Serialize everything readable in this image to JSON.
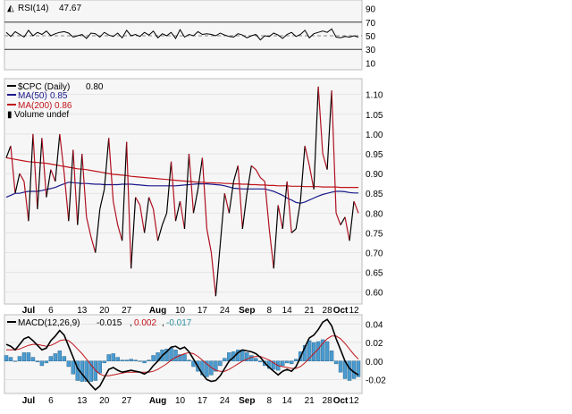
{
  "rsi_panel": {
    "label": "RSI(14)",
    "value": "47.67",
    "levels": [
      90,
      70,
      50,
      30,
      10
    ],
    "ref_lines": [
      70,
      50,
      30
    ],
    "ylim": [
      0,
      100
    ]
  },
  "price_panel": {
    "legend": [
      {
        "label": "$CPC (Daily)",
        "value": "0.80",
        "color": "#000000"
      },
      {
        "label": "MA(50)",
        "value": "0.85",
        "color": "#1a1a8c"
      },
      {
        "label": "MA(200)",
        "value": "0.86",
        "color": "#c0141a"
      },
      {
        "label": "Volume undef",
        "value": "",
        "color": "#777777"
      }
    ],
    "y_ticks": [
      "1.10",
      "1.05",
      "1.00",
      "0.95",
      "0.90",
      "0.85",
      "0.80",
      "0.75",
      "0.70",
      "0.65",
      "0.60"
    ]
  },
  "macd_panel": {
    "label": "MACD(12,26,9)",
    "values": [
      "-0.015",
      "0.002",
      "-0.017"
    ],
    "colors": [
      "#000000",
      "#c0141a",
      "#2f8fa0"
    ],
    "y_ticks": [
      "0.04",
      "0.02",
      "0.00",
      "-0.02"
    ]
  },
  "x_axis": {
    "labels": [
      "Jul",
      "6",
      "13",
      "20",
      "27",
      "Aug",
      "10",
      "17",
      "24",
      "Sep",
      "8",
      "14",
      "21",
      "28",
      "Oct",
      "12"
    ]
  },
  "chart_data": [
    {
      "type": "line",
      "panel": "RSI",
      "title": "RSI(14) 47.67",
      "ylim": [
        0,
        100
      ],
      "x": [
        1,
        2,
        3,
        4,
        5,
        6,
        7,
        8,
        9,
        10,
        11,
        12,
        13,
        14,
        15,
        16,
        17,
        18,
        19,
        20,
        21,
        22,
        23,
        24,
        25,
        26,
        27,
        28,
        29,
        30,
        31,
        32,
        33,
        34,
        35,
        36,
        37,
        38,
        39,
        40,
        41,
        42,
        43,
        44,
        45,
        46,
        47,
        48,
        49,
        50,
        51,
        52,
        53,
        54,
        55,
        56,
        57,
        58,
        59,
        60,
        61,
        62,
        63,
        64,
        65,
        66,
        67,
        68,
        69,
        70,
        71,
        72,
        73,
        74,
        75,
        76,
        77,
        78,
        79,
        80
      ],
      "series": [
        {
          "name": "RSI(14)",
          "values": [
            55,
            49,
            56,
            52,
            48,
            58,
            50,
            55,
            52,
            57,
            50,
            53,
            55,
            56,
            54,
            48,
            50,
            52,
            46,
            54,
            53,
            48,
            55,
            51,
            49,
            54,
            47,
            58,
            50,
            52,
            49,
            55,
            51,
            57,
            47,
            53,
            50,
            55,
            46,
            59,
            48,
            52,
            50,
            56,
            52,
            53,
            52,
            50,
            54,
            51,
            49,
            48,
            53,
            51,
            47,
            50,
            52,
            44,
            50,
            49,
            54,
            51,
            46,
            52,
            55,
            49,
            52,
            58,
            47,
            53,
            55,
            57,
            55,
            60,
            48,
            47,
            49,
            48,
            50,
            48
          ]
        }
      ]
    },
    {
      "type": "line",
      "panel": "price",
      "title": "$CPC (Daily) 0.80",
      "ylim": [
        0.57,
        1.14
      ],
      "x": [
        1,
        2,
        3,
        4,
        5,
        6,
        7,
        8,
        9,
        10,
        11,
        12,
        13,
        14,
        15,
        16,
        17,
        18,
        19,
        20,
        21,
        22,
        23,
        24,
        25,
        26,
        27,
        28,
        29,
        30,
        31,
        32,
        33,
        34,
        35,
        36,
        37,
        38,
        39,
        40,
        41,
        42,
        43,
        44,
        45,
        46,
        47,
        48,
        49,
        50,
        51,
        52,
        53,
        54,
        55,
        56,
        57,
        58,
        59,
        60,
        61,
        62,
        63,
        64,
        65,
        66,
        67,
        68,
        69,
        70,
        71,
        72,
        73,
        74,
        75,
        76,
        77,
        78,
        79,
        80
      ],
      "series": [
        {
          "name": "$CPC (Daily)",
          "values": [
            0.94,
            0.97,
            0.85,
            0.9,
            0.88,
            0.78,
            1.0,
            0.81,
            0.99,
            0.84,
            0.91,
            0.88,
            1.0,
            0.9,
            0.78,
            0.96,
            0.77,
            0.95,
            0.79,
            0.74,
            0.7,
            0.81,
            0.86,
            0.99,
            0.83,
            0.77,
            0.73,
            0.98,
            0.66,
            0.84,
            0.82,
            0.75,
            0.84,
            0.81,
            0.73,
            0.77,
            0.8,
            0.93,
            0.78,
            0.83,
            0.76,
            0.95,
            0.8,
            0.86,
            0.94,
            0.76,
            0.7,
            0.59,
            0.72,
            0.85,
            0.8,
            0.88,
            0.92,
            0.76,
            0.85,
            0.92,
            0.91,
            0.89,
            0.88,
            0.76,
            0.66,
            0.82,
            0.76,
            0.88,
            0.75,
            0.76,
            0.83,
            0.97,
            0.92,
            0.86,
            1.12,
            0.95,
            0.91,
            1.11,
            0.8,
            0.77,
            0.79,
            0.73,
            0.83,
            0.8
          ]
        },
        {
          "name": "MA(50)",
          "values": [
            0.84,
            0.845,
            0.85,
            0.85,
            0.853,
            0.855,
            0.855,
            0.855,
            0.857,
            0.86,
            0.862,
            0.865,
            0.87,
            0.874,
            0.878,
            0.877,
            0.876,
            0.875,
            0.875,
            0.874,
            0.873,
            0.873,
            0.872,
            0.872,
            0.872,
            0.872,
            0.873,
            0.873,
            0.873,
            0.872,
            0.871,
            0.87,
            0.869,
            0.869,
            0.869,
            0.869,
            0.869,
            0.869,
            0.869,
            0.87,
            0.871,
            0.872,
            0.873,
            0.874,
            0.874,
            0.874,
            0.873,
            0.872,
            0.871,
            0.869,
            0.866,
            0.863,
            0.862,
            0.861,
            0.861,
            0.861,
            0.861,
            0.861,
            0.861,
            0.858,
            0.855,
            0.85,
            0.845,
            0.838,
            0.833,
            0.827,
            0.825,
            0.828,
            0.833,
            0.838,
            0.843,
            0.847,
            0.85,
            0.853,
            0.855,
            0.855,
            0.854,
            0.852,
            0.851,
            0.851
          ]
        },
        {
          "name": "MA(200)",
          "values": [
            0.94,
            0.938,
            0.936,
            0.934,
            0.932,
            0.93,
            0.929,
            0.928,
            0.927,
            0.926,
            0.924,
            0.922,
            0.92,
            0.918,
            0.916,
            0.914,
            0.912,
            0.911,
            0.91,
            0.908,
            0.906,
            0.904,
            0.902,
            0.9,
            0.898,
            0.897,
            0.896,
            0.895,
            0.893,
            0.892,
            0.891,
            0.89,
            0.889,
            0.888,
            0.887,
            0.886,
            0.885,
            0.884,
            0.883,
            0.882,
            0.881,
            0.88,
            0.879,
            0.878,
            0.878,
            0.877,
            0.877,
            0.876,
            0.876,
            0.875,
            0.875,
            0.874,
            0.874,
            0.873,
            0.873,
            0.872,
            0.872,
            0.871,
            0.871,
            0.87,
            0.87,
            0.869,
            0.869,
            0.869,
            0.868,
            0.868,
            0.868,
            0.867,
            0.867,
            0.867,
            0.867,
            0.866,
            0.866,
            0.866,
            0.866,
            0.865,
            0.865,
            0.865,
            0.865,
            0.865
          ]
        }
      ]
    },
    {
      "type": "bar",
      "panel": "MACD",
      "title": "MACD(12,26,9) -0.015, 0.002, -0.017",
      "ylim": [
        -0.035,
        0.05
      ],
      "x": [
        1,
        2,
        3,
        4,
        5,
        6,
        7,
        8,
        9,
        10,
        11,
        12,
        13,
        14,
        15,
        16,
        17,
        18,
        19,
        20,
        21,
        22,
        23,
        24,
        25,
        26,
        27,
        28,
        29,
        30,
        31,
        32,
        33,
        34,
        35,
        36,
        37,
        38,
        39,
        40,
        41,
        42,
        43,
        44,
        45,
        46,
        47,
        48,
        49,
        50,
        51,
        52,
        53,
        54,
        55,
        56,
        57,
        58,
        59,
        60,
        61,
        62,
        63,
        64,
        65,
        66,
        67,
        68,
        69,
        70,
        71,
        72,
        73,
        74,
        75,
        76,
        77,
        78,
        79,
        80
      ],
      "series": [
        {
          "name": "MACD",
          "type": "line",
          "values": [
            0.018,
            0.016,
            0.012,
            0.018,
            0.024,
            0.026,
            0.022,
            0.017,
            0.012,
            0.014,
            0.022,
            0.027,
            0.033,
            0.028,
            0.016,
            0.004,
            -0.008,
            -0.014,
            -0.02,
            -0.026,
            -0.031,
            -0.027,
            -0.018,
            -0.009,
            -0.007,
            -0.01,
            -0.012,
            -0.011,
            -0.01,
            -0.011,
            -0.012,
            -0.014,
            -0.011,
            -0.005,
            0.0,
            0.006,
            0.01,
            0.015,
            0.016,
            0.013,
            0.015,
            0.01,
            0.002,
            -0.006,
            -0.014,
            -0.02,
            -0.022,
            -0.021,
            -0.016,
            -0.008,
            0.0,
            0.004,
            0.009,
            0.012,
            0.011,
            0.01,
            0.008,
            0.004,
            -0.002,
            -0.007,
            -0.011,
            -0.015,
            -0.011,
            -0.009,
            -0.011,
            -0.006,
            0.004,
            0.015,
            0.025,
            0.028,
            0.034,
            0.042,
            0.045,
            0.038,
            0.024,
            0.012,
            0.0,
            -0.008,
            -0.012,
            -0.015
          ]
        },
        {
          "name": "Signal",
          "type": "line",
          "values": [
            0.012,
            0.012,
            0.012,
            0.013,
            0.015,
            0.017,
            0.018,
            0.018,
            0.017,
            0.016,
            0.017,
            0.019,
            0.022,
            0.023,
            0.022,
            0.018,
            0.013,
            0.008,
            0.002,
            -0.004,
            -0.01,
            -0.014,
            -0.016,
            -0.016,
            -0.015,
            -0.014,
            -0.013,
            -0.012,
            -0.012,
            -0.012,
            -0.012,
            -0.012,
            -0.012,
            -0.011,
            -0.009,
            -0.006,
            -0.003,
            0.001,
            0.004,
            0.006,
            0.008,
            0.009,
            0.008,
            0.005,
            0.001,
            -0.003,
            -0.007,
            -0.01,
            -0.011,
            -0.011,
            -0.009,
            -0.006,
            -0.003,
            0.0,
            0.002,
            0.004,
            0.005,
            0.005,
            0.003,
            0.001,
            -0.002,
            -0.005,
            -0.006,
            -0.007,
            -0.008,
            -0.008,
            -0.006,
            -0.002,
            0.003,
            0.008,
            0.013,
            0.019,
            0.024,
            0.027,
            0.027,
            0.024,
            0.019,
            0.013,
            0.007,
            0.002
          ]
        },
        {
          "name": "Histogram",
          "type": "bar",
          "values": [
            0.006,
            0.004,
            0.0,
            0.005,
            0.009,
            0.009,
            0.004,
            -0.001,
            -0.005,
            -0.002,
            0.005,
            0.008,
            0.011,
            0.005,
            -0.006,
            -0.014,
            -0.021,
            -0.022,
            -0.022,
            -0.022,
            -0.021,
            -0.013,
            -0.002,
            0.007,
            0.008,
            0.004,
            0.001,
            0.001,
            0.002,
            0.001,
            0.0,
            -0.002,
            0.001,
            0.006,
            0.009,
            0.012,
            0.013,
            0.014,
            0.012,
            0.007,
            0.007,
            0.001,
            -0.006,
            -0.011,
            -0.015,
            -0.017,
            -0.015,
            -0.011,
            -0.005,
            0.003,
            0.009,
            0.01,
            0.012,
            0.012,
            0.009,
            0.006,
            0.003,
            -0.001,
            -0.005,
            -0.008,
            -0.009,
            -0.01,
            -0.005,
            -0.002,
            -0.003,
            0.002,
            0.01,
            0.017,
            0.022,
            0.02,
            0.021,
            0.023,
            0.021,
            0.011,
            -0.003,
            -0.012,
            -0.019,
            -0.021,
            -0.019,
            -0.017
          ]
        }
      ]
    }
  ]
}
